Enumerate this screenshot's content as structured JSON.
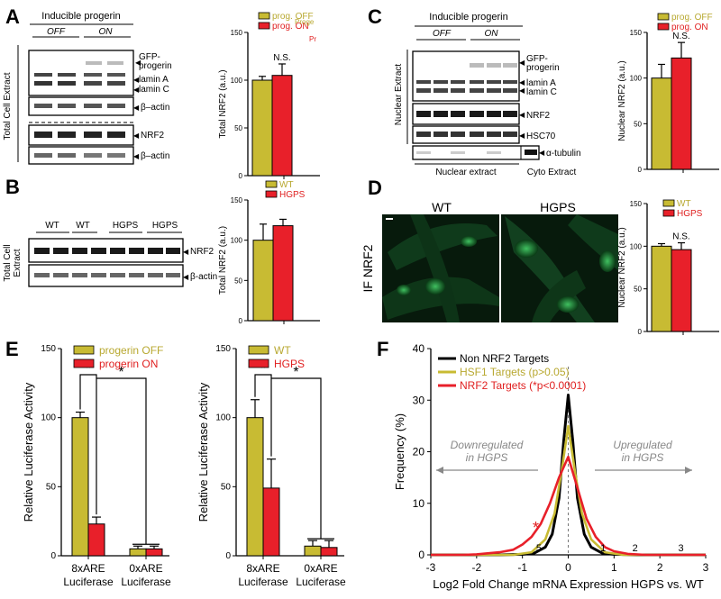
{
  "colors": {
    "yellow": "#c8bb33",
    "red": "#e8202a",
    "black": "#000000",
    "yellow_text": "#b8a830",
    "red_text": "#e02020"
  },
  "panel_labels": {
    "a": "A",
    "b": "B",
    "c": "C",
    "d": "D",
    "e": "E",
    "f": "F"
  },
  "blots": {
    "a": {
      "title": "Inducible progerin",
      "off": "OFF",
      "on": "ON",
      "side": "Total Cell Extract",
      "gfp1": "GFP-",
      "gfp2": "progerin",
      "lamin_a": "lamin A",
      "lamin_c": "lamin C",
      "beta_actin1": "β–actin",
      "nrf2": "NRF2",
      "beta_actin2": "β–actin"
    },
    "b": {
      "lanes": [
        "WT",
        "WT",
        "HGPS",
        "HGPS"
      ],
      "side1": "Total Cell",
      "side2": "Extract",
      "nrf2": "NRF2",
      "beta_actin": "β-actin"
    },
    "c": {
      "title": "Inducible progerin",
      "off": "OFF",
      "on": "ON",
      "side": "Nuclear Extract",
      "gfp1": "GFP-",
      "gfp2": "progerin",
      "lamin_a": "lamin A",
      "lamin_c": "lamin C",
      "nrf2": "NRF2",
      "hsc70": "HSC70",
      "tubulin": "α-tubulin",
      "nuc_ext": "Nuclear extract",
      "cyto_ext": "Cyto Extract"
    },
    "d": {
      "wt": "WT",
      "hgps": "HGPS",
      "side": "IF NRF2"
    }
  },
  "chart_data": [
    {
      "id": "A",
      "type": "bar",
      "categories": [
        "prog. OFF",
        "prog. ON"
      ],
      "values": [
        100,
        105
      ],
      "errors": [
        4,
        12
      ],
      "ylabel": "Total NRF2 (a.u.)",
      "ylim": [
        0,
        150
      ],
      "yticks": [
        0,
        50,
        100,
        150
      ],
      "annotation": "N.S.",
      "legend": [
        "prog. OFF",
        "prog. ON"
      ],
      "legend_ghost": [
        "Proge",
        "Pr"
      ]
    },
    {
      "id": "B",
      "type": "bar",
      "categories": [
        "WT",
        "HGPS"
      ],
      "values": [
        100,
        118
      ],
      "errors": [
        20,
        8
      ],
      "ylabel": "Total NRF2 (a.u.)",
      "ylim": [
        0,
        150
      ],
      "yticks": [
        0,
        50,
        100,
        150
      ],
      "legend": [
        "WT",
        "HGPS"
      ]
    },
    {
      "id": "C",
      "type": "bar",
      "categories": [
        "prog. OFF",
        "prog. ON"
      ],
      "values": [
        100,
        122
      ],
      "errors": [
        15,
        17
      ],
      "ylabel": "Nuclear NRF2 (a.u.)",
      "ylim": [
        0,
        150
      ],
      "yticks": [
        0,
        50,
        100,
        150
      ],
      "annotation": "N.S.",
      "legend": [
        "prog. OFF",
        "prog. ON"
      ]
    },
    {
      "id": "D",
      "type": "bar",
      "categories": [
        "WT",
        "HGPS"
      ],
      "values": [
        100,
        96
      ],
      "errors": [
        3,
        8
      ],
      "ylabel": "Nuclear NRF2 (a.u.)",
      "ylim": [
        0,
        150
      ],
      "yticks": [
        0,
        50,
        100,
        150
      ],
      "annotation": "N.S.",
      "legend": [
        "WT",
        "HGPS"
      ]
    },
    {
      "id": "E1",
      "type": "bar",
      "categories": [
        "8xARE Luciferase",
        "0xARE Luciferase"
      ],
      "series": [
        {
          "name": "progerin OFF",
          "values": [
            100,
            5
          ],
          "errors": [
            4,
            2
          ]
        },
        {
          "name": "progerin ON",
          "values": [
            23,
            5
          ],
          "errors": [
            5,
            2
          ]
        }
      ],
      "ylabel": "Relative  Luciferase  Activity",
      "ylim": [
        0,
        150
      ],
      "yticks": [
        0,
        50,
        100,
        150
      ],
      "significance": [
        "*",
        "*"
      ]
    },
    {
      "id": "E2",
      "type": "bar",
      "categories": [
        "8xARE Luciferase",
        "0xARE Luciferase"
      ],
      "series": [
        {
          "name": "WT",
          "values": [
            100,
            7
          ],
          "errors": [
            13,
            4
          ]
        },
        {
          "name": "HGPS",
          "values": [
            49,
            6
          ],
          "errors": [
            21,
            5
          ]
        }
      ],
      "ylabel": "Relative  Luciferase  Activity",
      "ylim": [
        0,
        150
      ],
      "yticks": [
        0,
        50,
        100,
        150
      ],
      "significance": [
        "*",
        "*"
      ]
    },
    {
      "id": "F",
      "type": "line",
      "xlabel": "Log2 Fold Change mRNA Expression HGPS vs. WT",
      "ylabel": "Frequency (%)",
      "xlim": [
        -3,
        3
      ],
      "ylim": [
        0,
        40
      ],
      "xticks": [
        -3,
        -2,
        -1,
        0,
        1,
        2,
        3
      ],
      "yticks": [
        0,
        10,
        20,
        30,
        40
      ],
      "series": [
        {
          "name": "Non NRF2 Targets",
          "x": [
            -3,
            -1.5,
            -1,
            -0.75,
            -0.5,
            -0.35,
            -0.2,
            -0.1,
            0,
            0.1,
            0.2,
            0.35,
            0.5,
            0.75,
            1,
            1.5,
            3
          ],
          "y": [
            0,
            0,
            0.1,
            0.3,
            1.5,
            4,
            11,
            22,
            31,
            22,
            11,
            4,
            1.5,
            0.3,
            0.1,
            0,
            0
          ]
        },
        {
          "name": "HSF1 Targets (p>0.05)",
          "x": [
            -3,
            -1.2,
            -0.8,
            -0.5,
            -0.3,
            -0.15,
            0,
            0.15,
            0.3,
            0.5,
            0.8,
            1.2,
            3
          ],
          "y": [
            0,
            0,
            0.5,
            3,
            8,
            16,
            25,
            16,
            8,
            3,
            0.5,
            0,
            0
          ]
        },
        {
          "name": "NRF2 Targets  (*p<0.0001)",
          "x": [
            -3,
            -2.3,
            -2,
            -1.5,
            -1.2,
            -1,
            -0.8,
            -0.6,
            -0.4,
            -0.2,
            0,
            0.2,
            0.4,
            0.6,
            0.8,
            1,
            1.3,
            1.7,
            2.2,
            3
          ],
          "y": [
            0,
            0,
            0.1,
            0.5,
            1,
            2,
            3.5,
            6,
            10,
            15,
            19,
            13,
            7,
            3.5,
            1.5,
            0.7,
            0.2,
            0,
            0,
            0
          ]
        }
      ],
      "annotations": {
        "down1": "Downregulated",
        "down2": "in HGPS",
        "up1": "Upregulated",
        "up2": "in HGPS",
        "star": "*",
        "peak_labels": [
          "5",
          "1",
          "2",
          "3"
        ]
      }
    }
  ]
}
